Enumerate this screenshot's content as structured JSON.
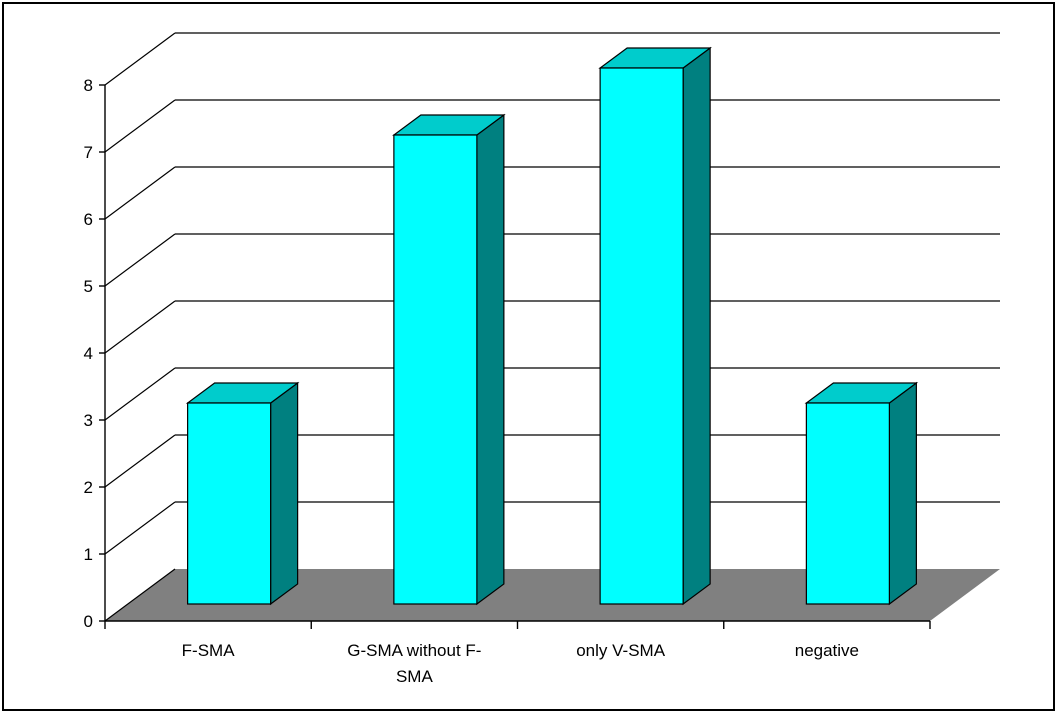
{
  "chart_data": {
    "type": "bar",
    "three_d": true,
    "categories": [
      "F-SMA",
      "G-SMA without F-SMA",
      "only V-SMA",
      "negative"
    ],
    "category_label_lines": [
      [
        "F-SMA"
      ],
      [
        "G-SMA without F-",
        "SMA"
      ],
      [
        "only V-SMA"
      ],
      [
        "negative"
      ]
    ],
    "values": [
      3,
      7,
      8,
      3
    ],
    "ylim": [
      0,
      8
    ],
    "yticks": [
      0,
      1,
      2,
      3,
      4,
      5,
      6,
      7,
      8
    ],
    "title": "",
    "xlabel": "",
    "ylabel": "",
    "grid": true,
    "legend": "none",
    "colors": {
      "bar_front": "#00FFFF",
      "bar_top": "#00CCCC",
      "bar_side": "#008080",
      "floor": "#808080",
      "grid": "#000000"
    }
  }
}
